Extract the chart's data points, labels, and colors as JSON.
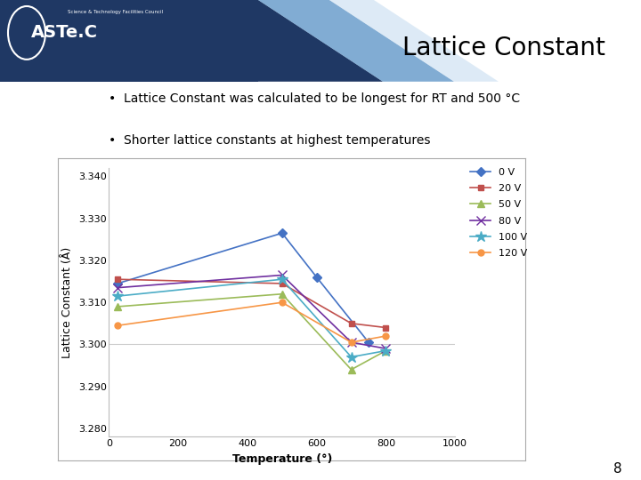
{
  "title": "Lattice Constant",
  "bullet1": "Lattice Constant was calculated to be longest for RT and 500 °C",
  "bullet2": "Shorter lattice constants at highest temperatures",
  "xlabel": "Temperature (°)",
  "ylabel": "Lattice Constant (Å)",
  "xlim": [
    0,
    1000
  ],
  "ylim": [
    3.278,
    3.342
  ],
  "yticks": [
    3.28,
    3.29,
    3.3,
    3.31,
    3.32,
    3.33,
    3.34
  ],
  "xticks": [
    0,
    200,
    400,
    600,
    800,
    1000
  ],
  "series": {
    "0 V": {
      "x": [
        25,
        500,
        600,
        750
      ],
      "y": [
        3.3145,
        3.3265,
        3.316,
        3.3005
      ],
      "color": "#4472C4",
      "marker": "D"
    },
    "20 V": {
      "x": [
        25,
        500,
        700,
        800
      ],
      "y": [
        3.3155,
        3.3145,
        3.305,
        3.304
      ],
      "color": "#C0504D",
      "marker": "s"
    },
    "50 V": {
      "x": [
        25,
        500,
        700,
        800
      ],
      "y": [
        3.309,
        3.312,
        3.294,
        3.2985
      ],
      "color": "#9BBB59",
      "marker": "^"
    },
    "80 V": {
      "x": [
        25,
        500,
        700,
        800
      ],
      "y": [
        3.3135,
        3.3165,
        3.3005,
        3.299
      ],
      "color": "#7030A0",
      "marker": "x"
    },
    "100 V": {
      "x": [
        25,
        500,
        700,
        800
      ],
      "y": [
        3.3115,
        3.3155,
        3.297,
        3.2985
      ],
      "color": "#4BACC6",
      "marker": "*"
    },
    "120 V": {
      "x": [
        25,
        500,
        700,
        800
      ],
      "y": [
        3.3045,
        3.31,
        3.3005,
        3.302
      ],
      "color": "#F79646",
      "marker": "o"
    }
  },
  "header_dark": "#1F3864",
  "header_mid": "#2E75B6",
  "header_light": "#BDD7EE",
  "background_color": "#FFFFFF",
  "chart_box_color": "#FFFFFF",
  "title_fontsize": 20,
  "axis_label_fontsize": 9,
  "tick_fontsize": 8,
  "legend_fontsize": 8,
  "bullet_fontsize": 10,
  "page_number": "8"
}
